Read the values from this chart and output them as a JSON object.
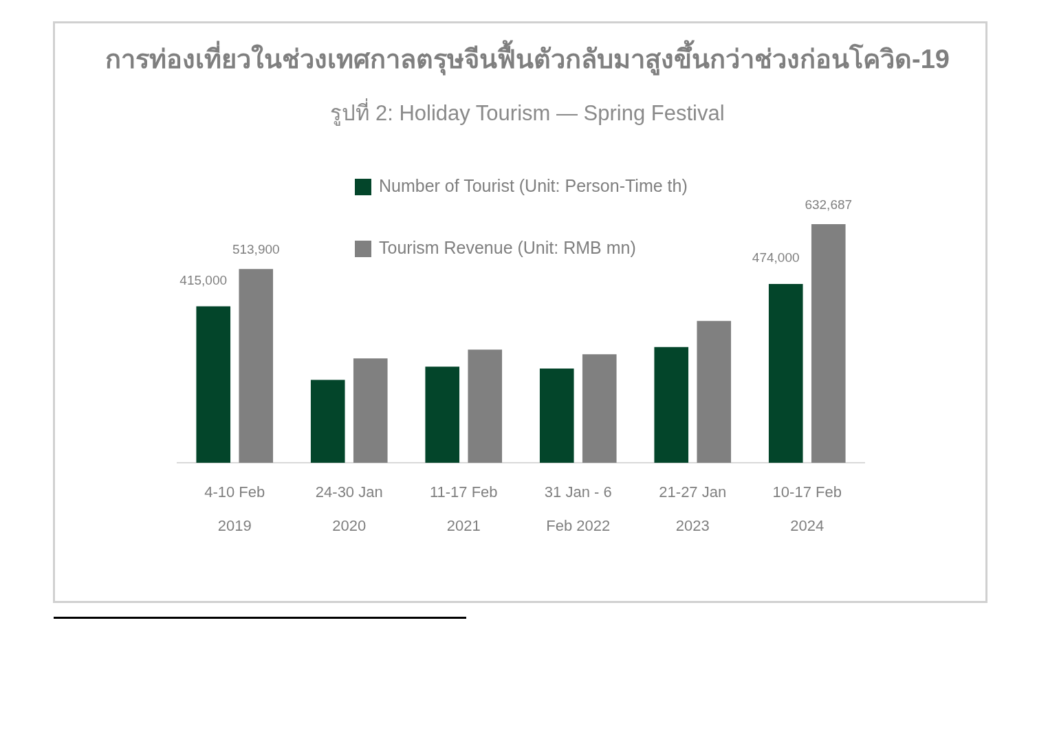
{
  "chart_data": {
    "type": "bar",
    "title": "การท่องเที่ยวในช่วงเทศกาลตรุษจีนฟื้นตัวกลับมาสูงขึ้นกว่าช่วงก่อนโควิด-19",
    "subtitle": "รูปที่ 2: Holiday Tourism — Spring Festival",
    "categories": [
      "4-10 Feb\n2019",
      "24-30 Jan\n2020",
      "11-17 Feb\n2021",
      "31 Jan - 6\nFeb 2022",
      "21-27 Jan\n2023",
      "10-17 Feb\n2024"
    ],
    "series": [
      {
        "name": "Number of Tourist (Unit: Person-Time th)",
        "color": "#03452a",
        "values": [
          415000,
          220000,
          255000,
          250000,
          307000,
          474000
        ],
        "value_labels": [
          "415,000",
          null,
          null,
          null,
          null,
          "474,000"
        ]
      },
      {
        "name": "Tourism Revenue (Unit: RMB mn)",
        "color": "#808080",
        "values": [
          513900,
          277000,
          300000,
          288000,
          376000,
          632687
        ],
        "value_labels": [
          "513,900",
          null,
          null,
          null,
          null,
          "632,687"
        ]
      }
    ],
    "legend": "top",
    "tick_labels": "x"
  }
}
